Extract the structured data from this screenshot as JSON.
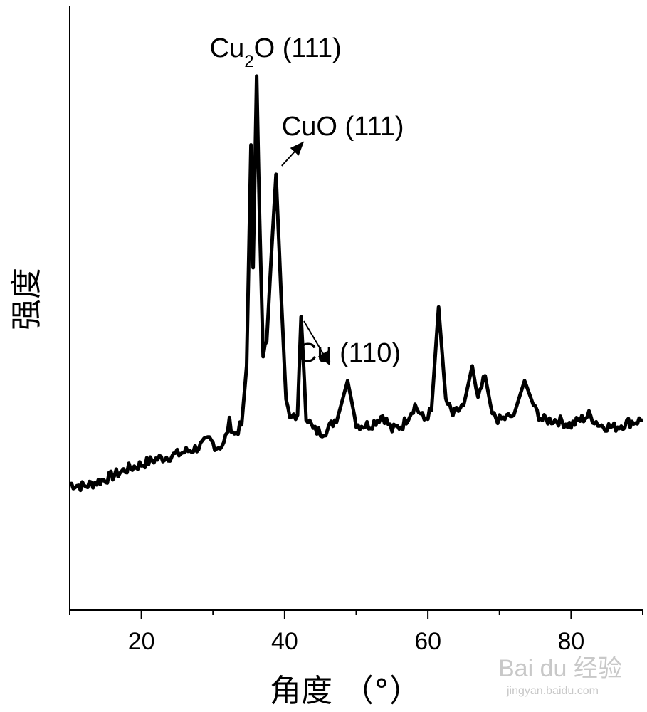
{
  "chart_data": {
    "type": "line",
    "title": "",
    "xlabel": "角度 （°）",
    "ylabel": "强度",
    "xlim": [
      10,
      90
    ],
    "ylim": [
      0,
      1
    ],
    "x_ticks": [
      20,
      40,
      60,
      80
    ],
    "x_tick_labels": [
      "20",
      "40",
      "60",
      "80"
    ],
    "grid": false,
    "y_axis_ticks_labeled": false,
    "series": [
      {
        "x": [
          10,
          12,
          15,
          18,
          20,
          22,
          25,
          28,
          29.5,
          30.5,
          31.5,
          32.3,
          33,
          34,
          34.7,
          35.3,
          35.6,
          36.1,
          36.5,
          37.0,
          37.5,
          38.2,
          38.8,
          39.5,
          40.2,
          41,
          41.8,
          42.3,
          43,
          44,
          45,
          46,
          47.5,
          48.8,
          50,
          52,
          53.7,
          55,
          56.5,
          58.2,
          59.5,
          60.5,
          61.5,
          62.5,
          63.5,
          65,
          66.2,
          67,
          68,
          69,
          70,
          72,
          73.5,
          75,
          76,
          78,
          80,
          82.5,
          84,
          86,
          88,
          90
        ],
        "y": [
          0.16,
          0.155,
          0.17,
          0.19,
          0.2,
          0.21,
          0.22,
          0.235,
          0.25,
          0.235,
          0.24,
          0.285,
          0.26,
          0.28,
          0.4,
          0.85,
          0.6,
          0.99,
          0.7,
          0.42,
          0.45,
          0.64,
          0.79,
          0.55,
          0.33,
          0.29,
          0.3,
          0.5,
          0.3,
          0.27,
          0.265,
          0.27,
          0.3,
          0.37,
          0.28,
          0.28,
          0.3,
          0.27,
          0.28,
          0.32,
          0.29,
          0.31,
          0.52,
          0.33,
          0.3,
          0.32,
          0.4,
          0.33,
          0.38,
          0.3,
          0.29,
          0.3,
          0.37,
          0.31,
          0.29,
          0.29,
          0.28,
          0.3,
          0.28,
          0.275,
          0.285,
          0.29
        ]
      }
    ],
    "annotations": [
      {
        "text": "Cu₂O (111)",
        "main": "Cu",
        "sub": "2",
        "rest": "O (111)",
        "x": 36.3,
        "y": 0.99,
        "arrow": false
      },
      {
        "text": "CuO (111)",
        "x": 38.8,
        "y": 0.79,
        "arrow": true
      },
      {
        "text": "Cu (110)",
        "x": 42.3,
        "y": 0.5,
        "arrow": true
      }
    ]
  },
  "watermark": {
    "logo": "Bai du 经验",
    "url": "jingyan.baidu.com"
  }
}
